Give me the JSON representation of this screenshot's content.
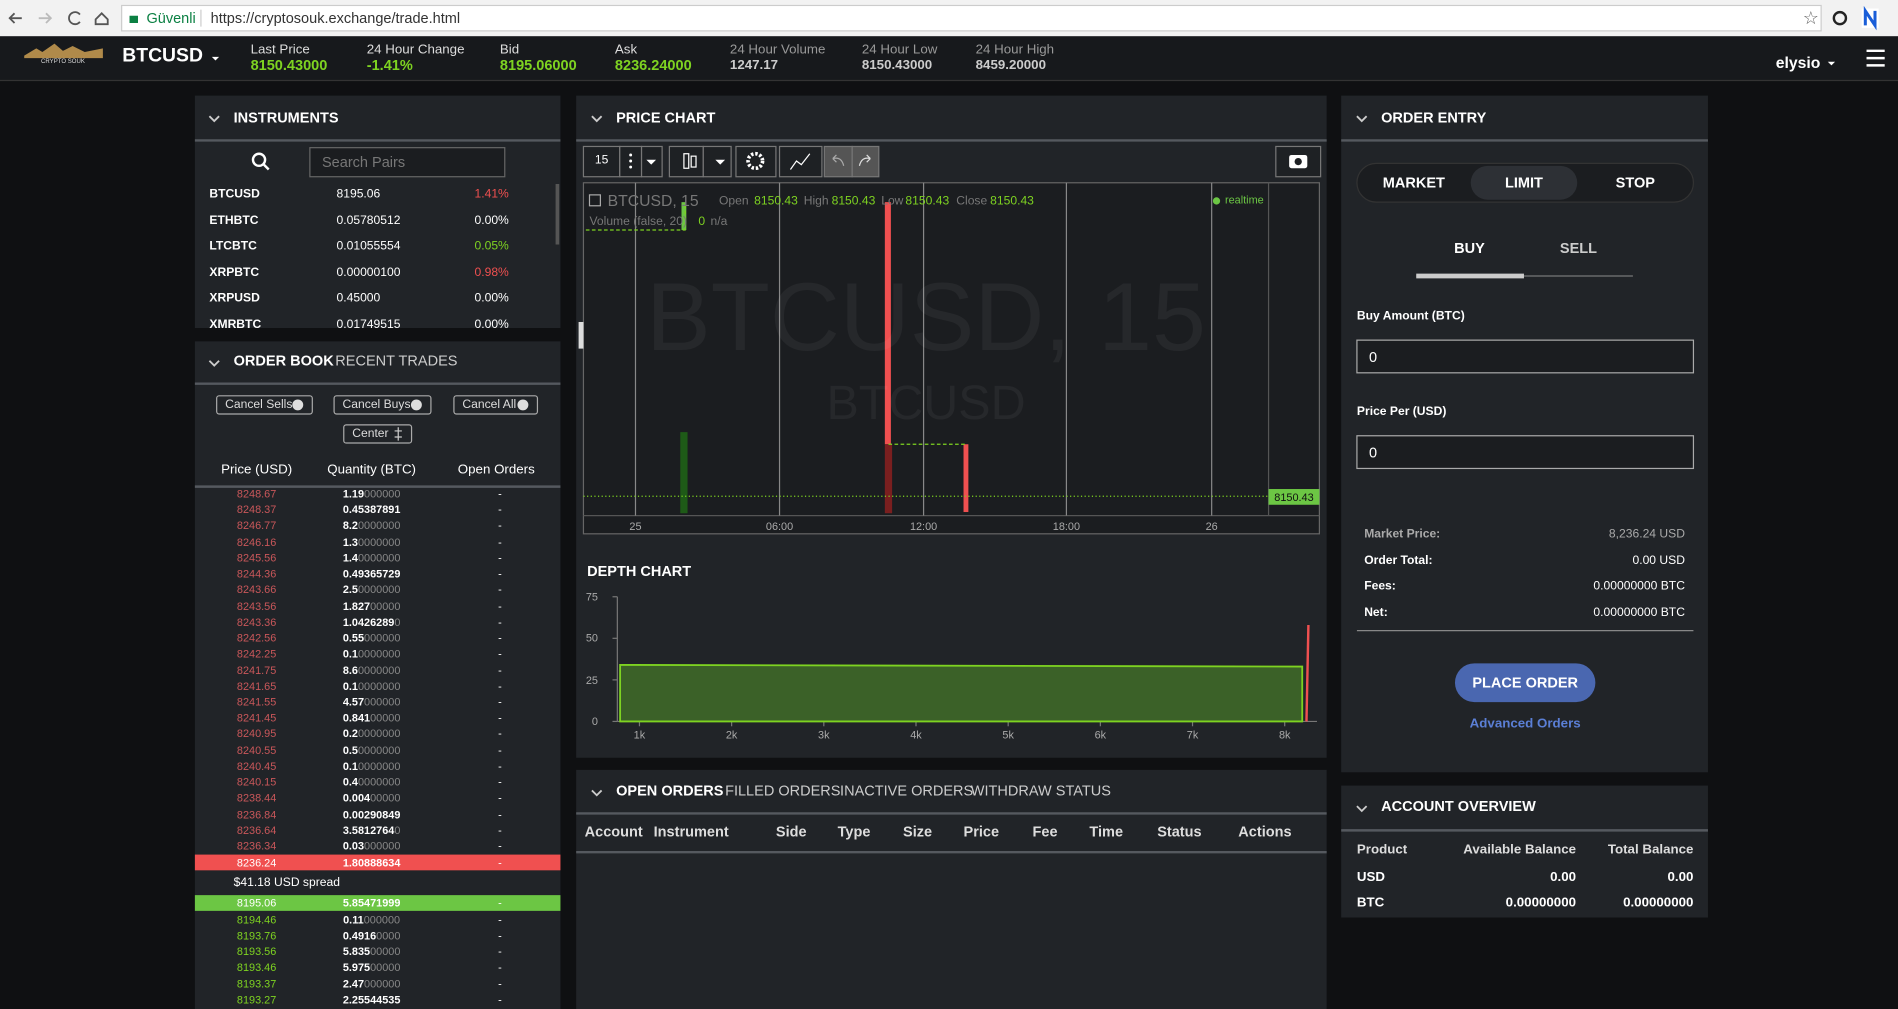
{
  "browser": {
    "secure_label": "Güvenli",
    "url": "https://cryptosouk.exchange/trade.html"
  },
  "header": {
    "logo": "CRYPTO SOUK",
    "pair": "BTCUSD",
    "user": "elysio",
    "stats": [
      {
        "label": "Last Price",
        "value": "8150.43000"
      },
      {
        "label": "24 Hour Change",
        "value": "-1.41%"
      },
      {
        "label": "Bid",
        "value": "8195.06000"
      },
      {
        "label": "Ask",
        "value": "8236.24000"
      },
      {
        "label": "24 Hour Volume",
        "value": "1247.17"
      },
      {
        "label": "24 Hour Low",
        "value": "8150.43000"
      },
      {
        "label": "24 Hour High",
        "value": "8459.20000"
      }
    ]
  },
  "instruments": {
    "title": "INSTRUMENTS",
    "search_placeholder": "Search Pairs",
    "rows": [
      {
        "symbol": "BTCUSD",
        "price": "8195.06",
        "change": "1.41%",
        "color": "#f05050"
      },
      {
        "symbol": "ETHBTC",
        "price": "0.05780512",
        "change": "0.00%",
        "color": "#ffffff"
      },
      {
        "symbol": "LTCBTC",
        "price": "0.01055554",
        "change": "0.05%",
        "color": "#7ed321"
      },
      {
        "symbol": "XRPBTC",
        "price": "0.00000100",
        "change": "0.98%",
        "color": "#f05050"
      },
      {
        "symbol": "XRPUSD",
        "price": "0.45000",
        "change": "0.00%",
        "color": "#ffffff"
      },
      {
        "symbol": "XMRBTC",
        "price": "0.01749515",
        "change": "0.00%",
        "color": "#ffffff"
      }
    ]
  },
  "order_book": {
    "tabs": [
      "ORDER BOOK",
      "RECENT TRADES"
    ],
    "buttons": [
      "Cancel Sells",
      "Cancel Buys",
      "Cancel All",
      "Center"
    ],
    "columns": [
      "Price (USD)",
      "Quantity (BTC)",
      "Open Orders"
    ],
    "asks": [
      [
        "8248.67",
        "1.19000000",
        "-"
      ],
      [
        "8248.37",
        "0.45387891",
        "-"
      ],
      [
        "8246.77",
        "8.20000000",
        "-"
      ],
      [
        "8246.16",
        "1.30000000",
        "-"
      ],
      [
        "8245.56",
        "1.40000000",
        "-"
      ],
      [
        "8244.36",
        "0.49365729",
        "-"
      ],
      [
        "8243.66",
        "2.50000000",
        "-"
      ],
      [
        "8243.56",
        "1.82700000",
        "-"
      ],
      [
        "8243.36",
        "1.04262890",
        "-"
      ],
      [
        "8242.56",
        "0.55000000",
        "-"
      ],
      [
        "8242.25",
        "0.10000000",
        "-"
      ],
      [
        "8241.75",
        "8.60000000",
        "-"
      ],
      [
        "8241.65",
        "0.10000000",
        "-"
      ],
      [
        "8241.55",
        "4.57000000",
        "-"
      ],
      [
        "8241.45",
        "0.84100000",
        "-"
      ],
      [
        "8240.95",
        "0.20000000",
        "-"
      ],
      [
        "8240.55",
        "0.50000000",
        "-"
      ],
      [
        "8240.45",
        "0.10000000",
        "-"
      ],
      [
        "8240.15",
        "0.40000000",
        "-"
      ],
      [
        "8238.44",
        "0.00400000",
        "-"
      ],
      [
        "8236.84",
        "0.00290849",
        "-"
      ],
      [
        "8236.64",
        "3.58127640",
        "-"
      ],
      [
        "8236.34",
        "0.03000000",
        "-"
      ]
    ],
    "best_ask": [
      "8236.24",
      "1.80888634",
      "-"
    ],
    "spread": "$41.18 USD spread",
    "best_bid": [
      "8195.06",
      "5.85471999",
      "-"
    ],
    "bids": [
      [
        "8194.46",
        "0.11000000",
        "-"
      ],
      [
        "8193.76",
        "0.49160000",
        "-"
      ],
      [
        "8193.56",
        "5.83500000",
        "-"
      ],
      [
        "8193.46",
        "5.97500000",
        "-"
      ],
      [
        "8193.37",
        "2.47000000",
        "-"
      ],
      [
        "8193.27",
        "2.25544535",
        "-"
      ]
    ]
  },
  "price_chart": {
    "title": "PRICE CHART",
    "interval": "15",
    "symbol": "BTCUSD, 15",
    "ohlc": [
      [
        "Open",
        "8150.43"
      ],
      [
        "High",
        "8150.43"
      ],
      [
        "Low",
        "8150.43"
      ],
      [
        "Close",
        "8150.43"
      ]
    ],
    "volume": "Volume (false, 20)",
    "volume_value": "0",
    "volume_na": "n/a",
    "status": "realtime",
    "watermark": "BTCUSD, 15",
    "watermark_sub": "BTCUSD",
    "time_labels": [
      "25",
      "06:00",
      "12:00",
      "18:00",
      "26"
    ],
    "last_price": "8150.43"
  },
  "depth_chart": {
    "title": "DEPTH CHART",
    "type": "area",
    "xlim": [
      760,
      8350
    ],
    "ylim": [
      0,
      75
    ],
    "yticks": [
      0,
      25,
      50,
      75
    ],
    "xticks": [
      {
        "value": 1000,
        "label": "1k"
      },
      {
        "value": 2000,
        "label": "2k"
      },
      {
        "value": 3000,
        "label": "3k"
      },
      {
        "value": 4000,
        "label": "4k"
      },
      {
        "value": 5000,
        "label": "5k"
      },
      {
        "value": 6000,
        "label": "6k"
      },
      {
        "value": 7000,
        "label": "7k"
      },
      {
        "value": 8000,
        "label": "8k"
      }
    ],
    "series": [
      {
        "color": "#7ed321",
        "x": [
          790,
          8190
        ],
        "values": [
          34,
          33
        ]
      },
      {
        "color": "#f05050",
        "x": [
          8236,
          8257
        ],
        "values": [
          0,
          58
        ]
      }
    ]
  },
  "open_orders": {
    "tabs": [
      "OPEN ORDERS",
      "FILLED ORDERS",
      "INACTIVE ORDERS",
      "WITHDRAW STATUS"
    ],
    "columns": [
      "Account",
      "Instrument",
      "Side",
      "Type",
      "Size",
      "Price",
      "Fee",
      "Time",
      "Status",
      "Actions"
    ]
  },
  "order_entry": {
    "title": "ORDER ENTRY",
    "modes": [
      "MARKET",
      "LIMIT",
      "STOP"
    ],
    "active_mode": 1,
    "sides": [
      "BUY",
      "SELL"
    ],
    "amount_label": "Buy Amount (BTC)",
    "amount": "0",
    "price_label": "Price Per (USD)",
    "price": "0",
    "summary": [
      [
        "Market Price:",
        "8,236.24 USD"
      ],
      [
        "Order Total:",
        "0.00 USD"
      ],
      [
        "Fees:",
        "0.00000000 BTC"
      ],
      [
        "Net:",
        "0.00000000 BTC"
      ]
    ],
    "button": "PLACE ORDER",
    "link": "Advanced Orders"
  },
  "account_overview": {
    "title": "ACCOUNT OVERVIEW",
    "columns": [
      "Product",
      "Available Balance",
      "Total Balance"
    ],
    "rows": [
      [
        "USD",
        "0.00",
        "0.00"
      ],
      [
        "BTC",
        "0.00000000",
        "0.00000000"
      ]
    ]
  }
}
